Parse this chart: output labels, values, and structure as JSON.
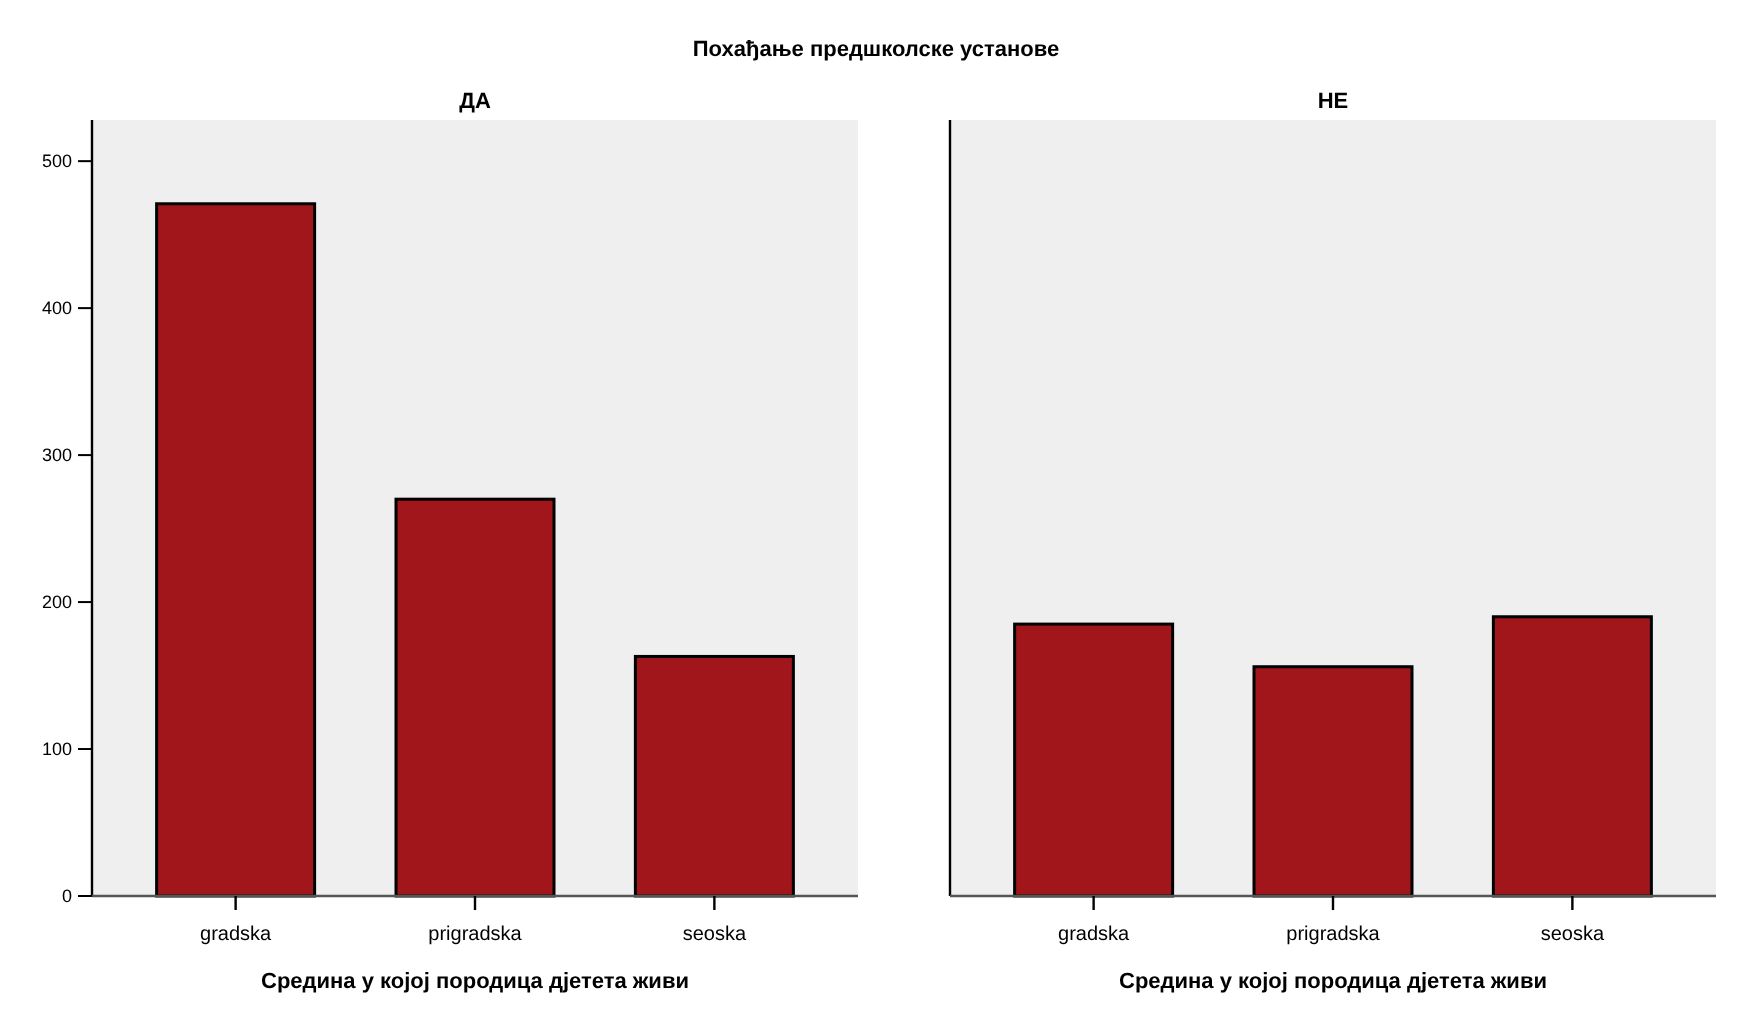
{
  "chart_data": [
    {
      "type": "bar",
      "title": "Похађање предшколске установе",
      "subtitle": "ДА",
      "xlabel": "Средина у којој породица дјетета живи",
      "categories": [
        "gradska",
        "prigradska",
        "seoska"
      ],
      "values": [
        471,
        270,
        163
      ],
      "color": "#a0161a",
      "ylim": [
        0,
        528
      ],
      "yticks": [
        0,
        100,
        200,
        300,
        400,
        500
      ],
      "grid": false
    },
    {
      "type": "bar",
      "subtitle": "НЕ",
      "xlabel": "Средина у којој породица дјетета живи",
      "categories": [
        "gradska",
        "prigradska",
        "seoska"
      ],
      "values": [
        185,
        156,
        190
      ],
      "color": "#a0161a",
      "ylim": [
        0,
        528
      ],
      "yticks": [
        0,
        100,
        200,
        300,
        400,
        500
      ],
      "tick_labels": "x",
      "grid": false
    }
  ]
}
